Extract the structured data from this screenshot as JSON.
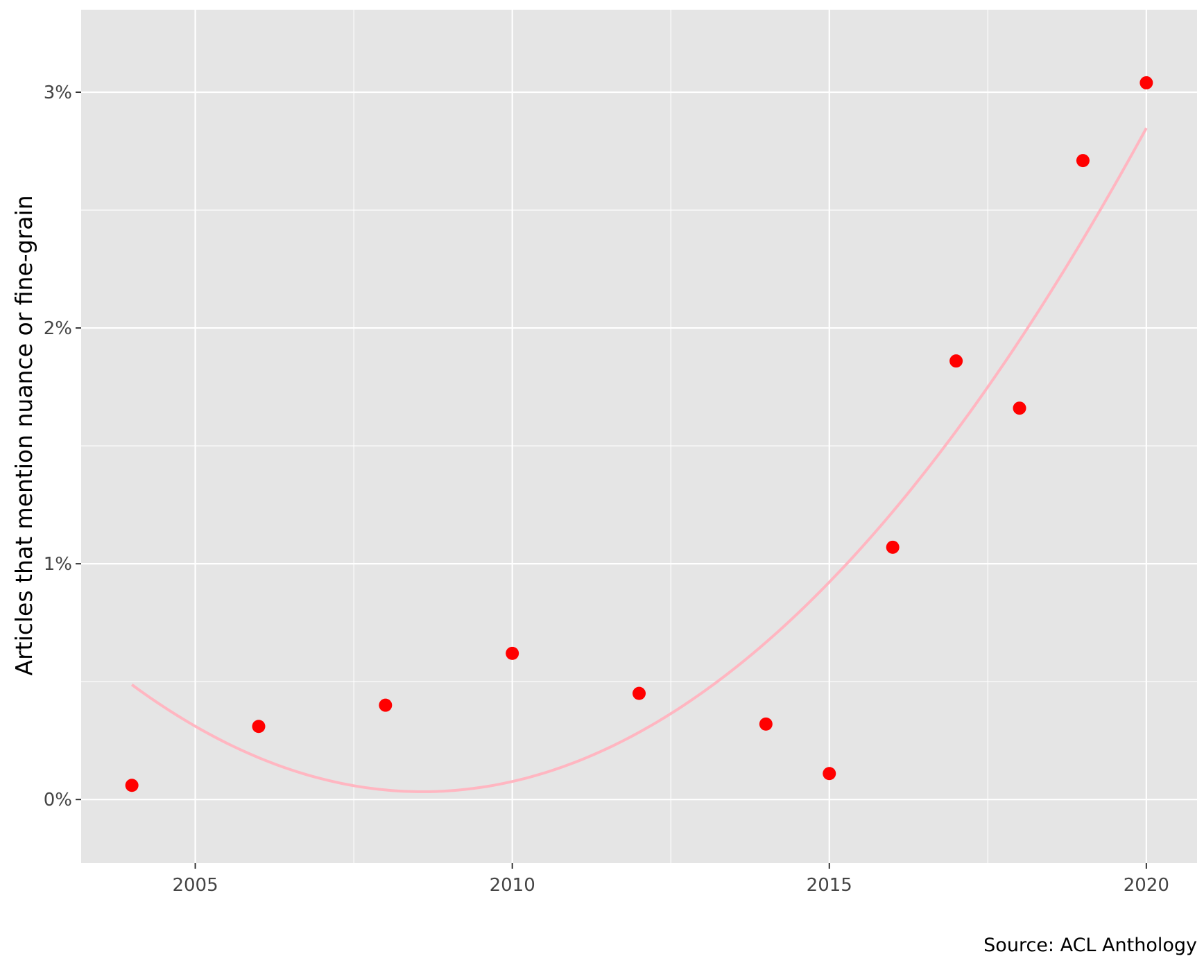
{
  "chart_data": {
    "type": "scatter",
    "title": "",
    "xlabel": "",
    "ylabel": "Articles that mention nuance or fine-grain",
    "caption": "Source: ACL Anthology",
    "xlim": [
      2003.2,
      2020.8
    ],
    "ylim": [
      -0.27,
      3.35
    ],
    "x_ticks": [
      2005,
      2010,
      2015,
      2020
    ],
    "x_tick_labels": [
      "2005",
      "2010",
      "2015",
      "2020"
    ],
    "y_ticks": [
      0,
      1,
      2,
      3
    ],
    "y_tick_labels": [
      "0%",
      "1%",
      "2%",
      "3%"
    ],
    "grid": true,
    "legend": "none",
    "points": {
      "x": [
        2004,
        2006,
        2008,
        2010,
        2012,
        2014,
        2015,
        2016,
        2017,
        2018,
        2019,
        2020
      ],
      "y": [
        0.06,
        0.31,
        0.4,
        0.62,
        0.45,
        0.32,
        0.11,
        1.07,
        1.86,
        1.66,
        2.71,
        3.04
      ],
      "unit": "%"
    },
    "trend_line": {
      "type": "quadratic fit",
      "x_range": [
        2004,
        2020
      ]
    },
    "colors": {
      "panel_background": "#e5e5e5",
      "grid": "#ffffff",
      "points": "#ff0000",
      "trend_line": "#ffb6c1",
      "tick_text": "#444444"
    }
  }
}
